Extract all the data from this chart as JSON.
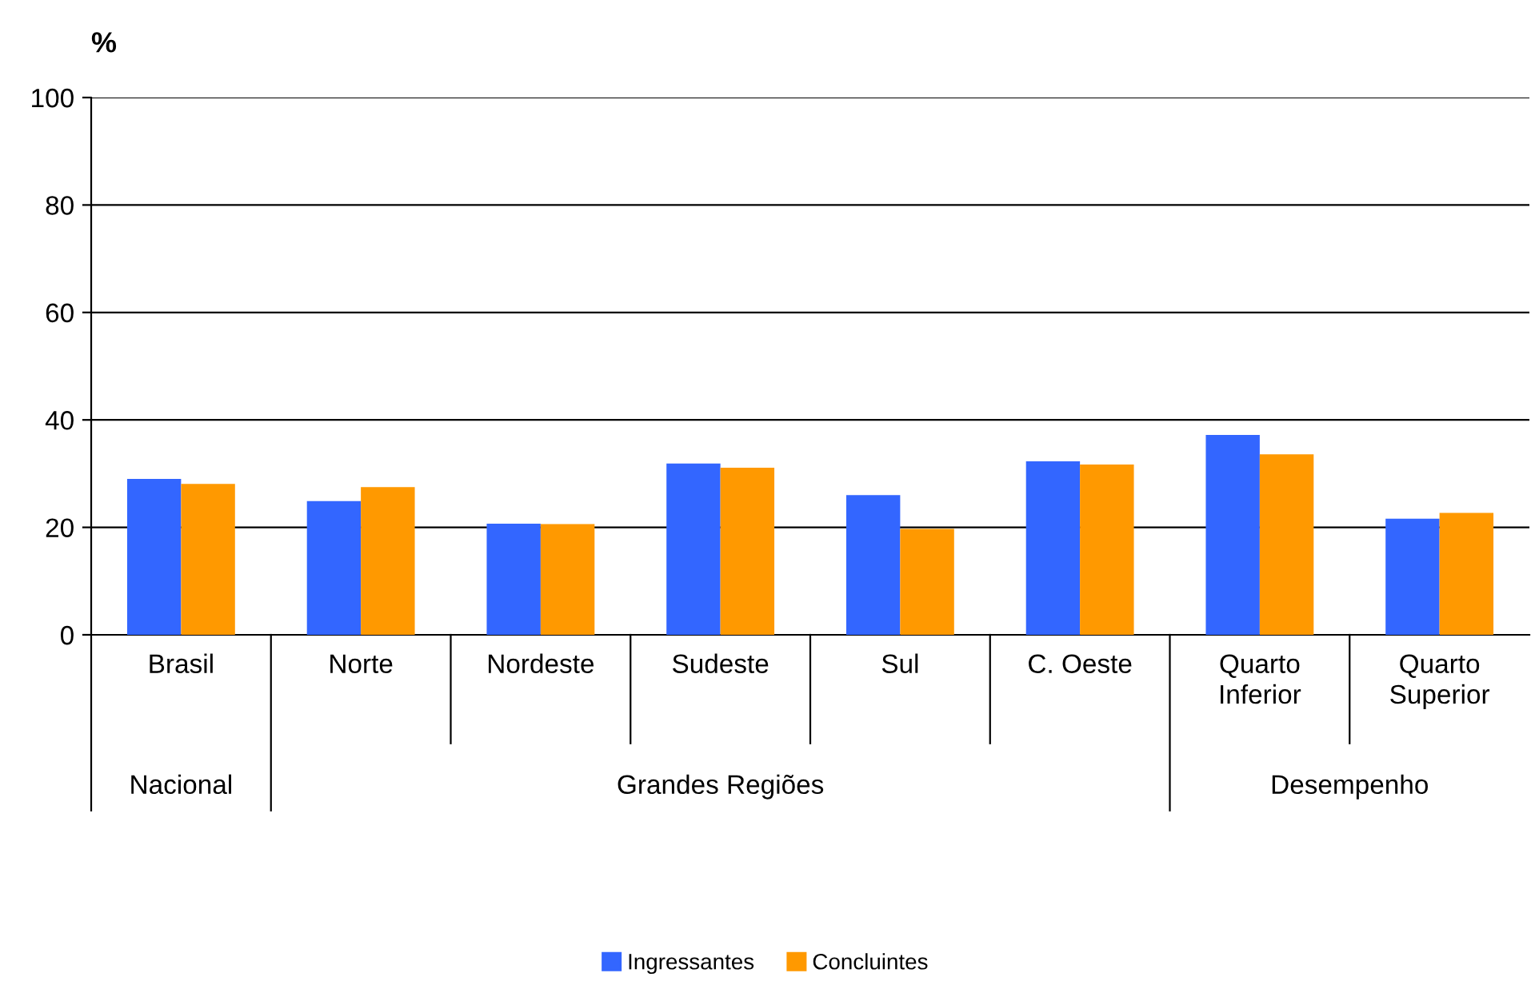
{
  "chart_data": {
    "type": "bar",
    "ylabel": "%",
    "categories": [
      "Brasil",
      "Norte",
      "Nordeste",
      "Sudeste",
      "Sul",
      "C. Oeste",
      "Quarto\nInferior",
      "Quarto\nSuperior"
    ],
    "series": [
      {
        "name": "Ingressantes",
        "color": "#3366ff",
        "values": [
          29.0,
          24.9,
          20.7,
          31.9,
          26.0,
          32.3,
          37.2,
          21.6
        ]
      },
      {
        "name": "Concluintes",
        "color": "#ff9900",
        "values": [
          28.1,
          27.5,
          20.6,
          31.1,
          19.7,
          31.7,
          33.6,
          22.7
        ]
      }
    ],
    "annotations": [
      "Nacional",
      "Grandes Regiões",
      "Desempenho"
    ],
    "ylim": [
      0,
      100
    ],
    "yticks": [
      0,
      20,
      40,
      60,
      80,
      100
    ],
    "grid": "y",
    "legend": "bottom"
  }
}
